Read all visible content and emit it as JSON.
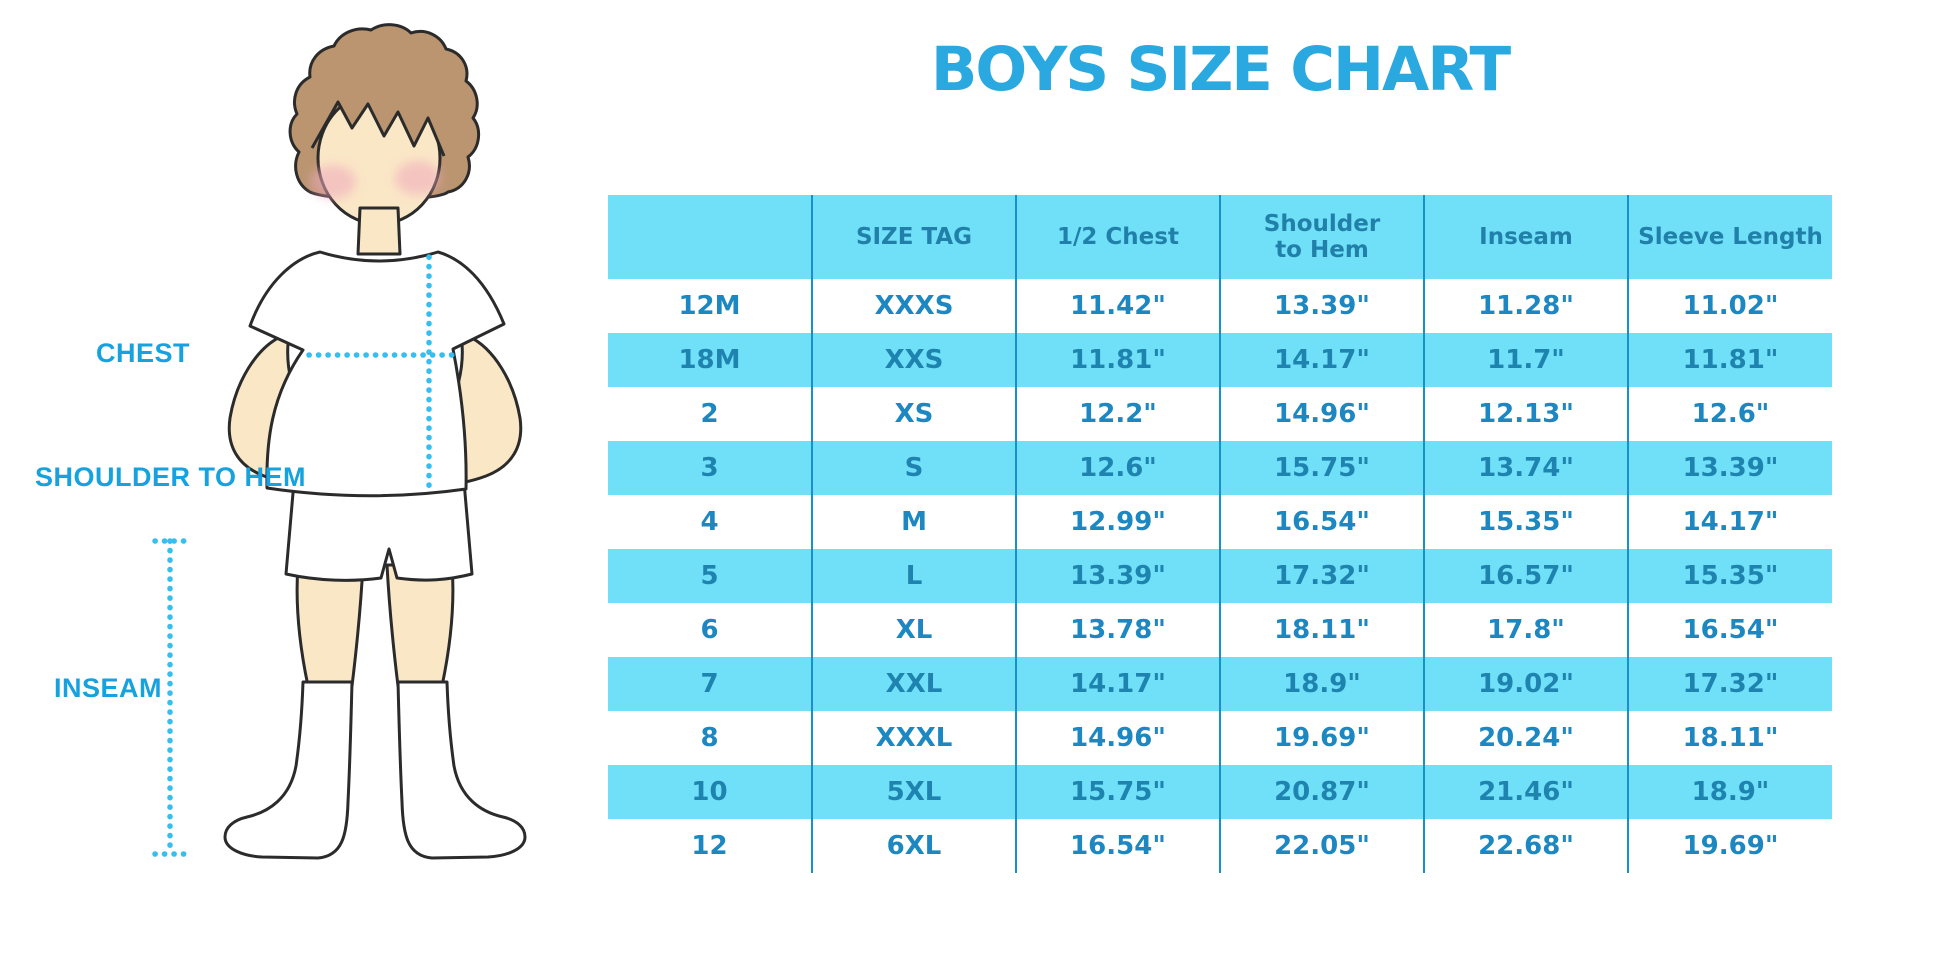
{
  "title": "BOYS SIZE CHART",
  "illustration": {
    "description": "outline drawing of a boy in a white t-shirt, shorts and knee socks with dotted measurement guides",
    "labels": {
      "chest": "CHEST",
      "shoulder_to_hem": "SHOULDER TO HEM",
      "inseam": "INSEAM"
    }
  },
  "table": {
    "columns": [
      "",
      "SIZE TAG",
      "1/2 Chest",
      "Shoulder to Hem",
      "Inseam",
      "Sleeve Length"
    ],
    "rows": [
      [
        "12M",
        "XXXS",
        "11.42\"",
        "13.39\"",
        "11.28\"",
        "11.02\""
      ],
      [
        "18M",
        "XXS",
        "11.81\"",
        "14.17\"",
        "11.7\"",
        "11.81\""
      ],
      [
        "2",
        "XS",
        "12.2\"",
        "14.96\"",
        "12.13\"",
        "12.6\""
      ],
      [
        "3",
        "S",
        "12.6\"",
        "15.75\"",
        "13.74\"",
        "13.39\""
      ],
      [
        "4",
        "M",
        "12.99\"",
        "16.54\"",
        "15.35\"",
        "14.17\""
      ],
      [
        "5",
        "L",
        "13.39\"",
        "17.32\"",
        "16.57\"",
        "15.35\""
      ],
      [
        "6",
        "XL",
        "13.78\"",
        "18.11\"",
        "17.8\"",
        "16.54\""
      ],
      [
        "7",
        "XXL",
        "14.17\"",
        "18.9\"",
        "19.02\"",
        "17.32\""
      ],
      [
        "8",
        "XXXL",
        "14.96\"",
        "19.69\"",
        "20.24\"",
        "18.11\""
      ],
      [
        "10",
        "5XL",
        "15.75\"",
        "20.87\"",
        "21.46\"",
        "18.9\""
      ],
      [
        "12",
        "6XL",
        "16.54\"",
        "22.05\"",
        "22.68\"",
        "19.69\""
      ]
    ]
  },
  "colors": {
    "title_blue": "#2AA9E0",
    "label_blue": "#16A2DF",
    "dotted_line_blue": "#36BEF0",
    "table_stripe_cyan": "#70E0F8",
    "table_divider_blue": "#1791C9",
    "header_text": "#2180A9",
    "cell_text": "#1C87C0",
    "skin": "#FAE7C6",
    "hair_brown": "#BA9570",
    "blush_pink": "#F0A8BC",
    "outline": "#2B2B2B"
  }
}
